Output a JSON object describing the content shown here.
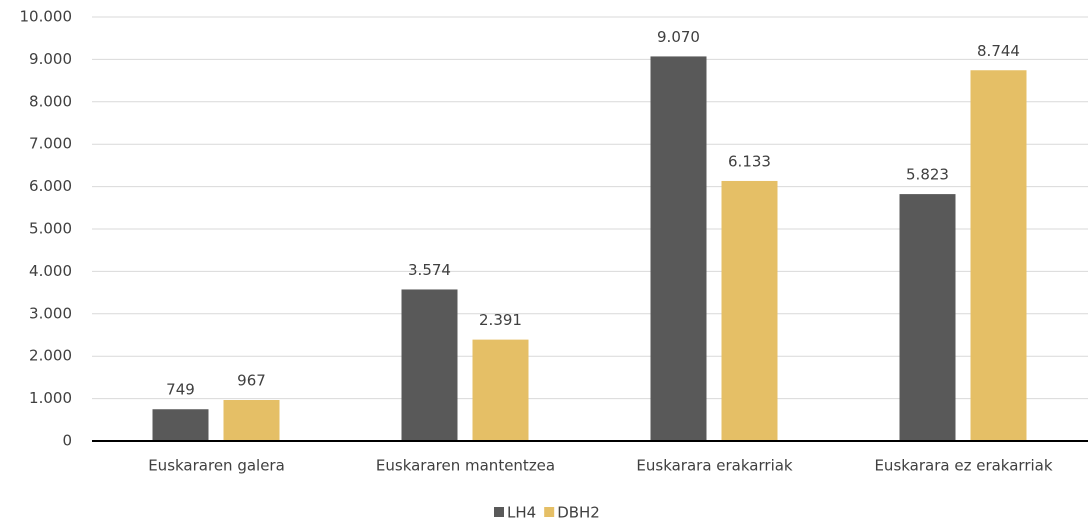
{
  "chart_data": {
    "type": "bar",
    "categories": [
      "Euskararen galera",
      "Euskararen mantentzea",
      "Euskarara erakarriak",
      "Euskarara ez erakarriak"
    ],
    "series": [
      {
        "name": "LH4",
        "color": "#595959",
        "values": [
          749,
          3574,
          9070,
          5823
        ],
        "value_labels": [
          "749",
          "3.574",
          "9.070",
          "5.823"
        ]
      },
      {
        "name": "DBH2",
        "color": "#e5bf66",
        "values": [
          967,
          2391,
          6133,
          8744
        ],
        "value_labels": [
          "967",
          "2.391",
          "6.133",
          "8.744"
        ]
      }
    ],
    "ylim": [
      0,
      10000
    ],
    "yticks": [
      0,
      {
        "value": 1000,
        "label": "1.000"
      },
      {
        "value": 2000,
        "label": "2.000"
      },
      {
        "value": 3000,
        "label": "3.000"
      },
      {
        "value": 4000,
        "label": "4.000"
      },
      {
        "value": 5000,
        "label": "5.000"
      },
      {
        "value": 6000,
        "label": "6.000"
      },
      {
        "value": 7000,
        "label": "7.000"
      },
      {
        "value": 8000,
        "label": "8.000"
      },
      {
        "value": 9000,
        "label": "9.000"
      },
      {
        "value": 10000,
        "label": "10.000"
      }
    ],
    "grid": true,
    "legend": "bottom"
  }
}
